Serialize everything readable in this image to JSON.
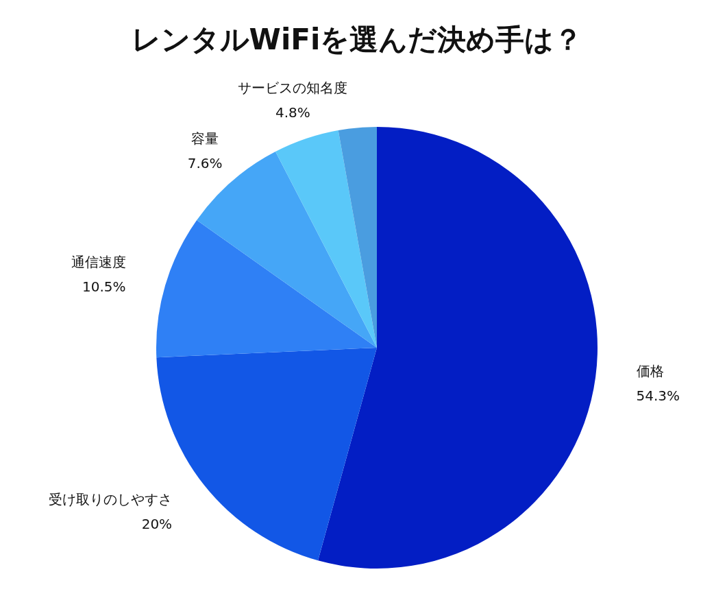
{
  "chart_data": {
    "type": "pie",
    "title": "レンタルWiFiを選んだ決め手は？",
    "categories": [
      "価格",
      "受け取りのしやすさ",
      "通信速度",
      "容量",
      "サービスの知名度",
      null
    ],
    "values": [
      54.3,
      20,
      10.5,
      7.6,
      4.8,
      2.8
    ],
    "value_labels": [
      "54.3%",
      "20%",
      "10.5%",
      "7.6%",
      "4.8%",
      null
    ],
    "colors": [
      "#031ec4",
      "#1257e6",
      "#2f80f5",
      "#45a6f7",
      "#5ac8f9",
      "#4a9de0"
    ]
  }
}
